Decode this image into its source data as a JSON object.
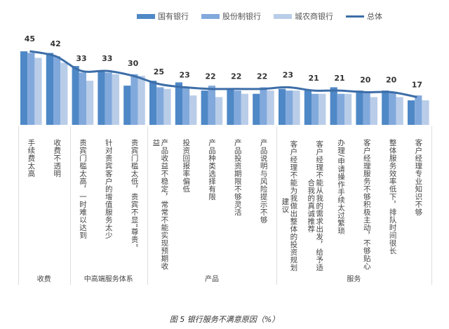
{
  "chart_data": {
    "type": "bar",
    "title": "",
    "caption": "图 5 银行服务不满意原因（%）",
    "xlabel": "",
    "ylabel": "",
    "ylim": [
      0,
      50
    ],
    "grid": false,
    "legend_position": "top",
    "colors": {
      "国有银行": "#4f88c6",
      "股份制银行": "#82a9dc",
      "城农商银行": "#b9cde9",
      "总体": "#3d6ea8"
    },
    "legend": [
      "国有银行",
      "股份制银行",
      "城农商银行",
      "总体"
    ],
    "categories": [
      "手续费太高",
      "收费不透明",
      "贵宾门槛太高，一时难以达到",
      "针对贵宾客户的增值服务太少",
      "贵宾门槛太低，贵宾不显“尊贵”",
      "产品收益不稳定，常常不能实现预期收益",
      "投资回报率偏低",
      "产品种类选择有限",
      "产品投资期限不够灵活",
      "产品说明与风险提示不够",
      "客户经理不能为我做出整体的投资规划建议",
      "客户经理不能从我的需求出发，给予适合我的真诚推荐",
      "办理/申请操作手续太过繁琐",
      "客户经理服务不够积极主动，不够贴心",
      "整体服务效率低下，排队时间很长",
      "客户经理专业知识不够"
    ],
    "groups": [
      {
        "label": "收费",
        "count": 2
      },
      {
        "label": "中高端服务体系",
        "count": 3
      },
      {
        "label": "产品",
        "count": 5
      },
      {
        "label": "服务",
        "count": 6
      }
    ],
    "series": [
      {
        "name": "国有银行",
        "type": "bar",
        "values": [
          45,
          44,
          36,
          33,
          24,
          27,
          26,
          21,
          22,
          19,
          22,
          21,
          23,
          21,
          21,
          15
        ]
      },
      {
        "name": "股份制银行",
        "type": "bar",
        "values": [
          44,
          42,
          32,
          32,
          31,
          23,
          23,
          24,
          21,
          23,
          21,
          19,
          19,
          20,
          20,
          18
        ]
      },
      {
        "name": "城农商银行",
        "type": "bar",
        "values": [
          41,
          38,
          27,
          31,
          30,
          22,
          18,
          17,
          19,
          21,
          21,
          19,
          19,
          17,
          17,
          15
        ]
      },
      {
        "name": "总体",
        "type": "line",
        "values": [
          45,
          42,
          33,
          33,
          30,
          25,
          23,
          22,
          22,
          22,
          23,
          21,
          21,
          20,
          20,
          17
        ],
        "data_labels": true
      }
    ]
  }
}
